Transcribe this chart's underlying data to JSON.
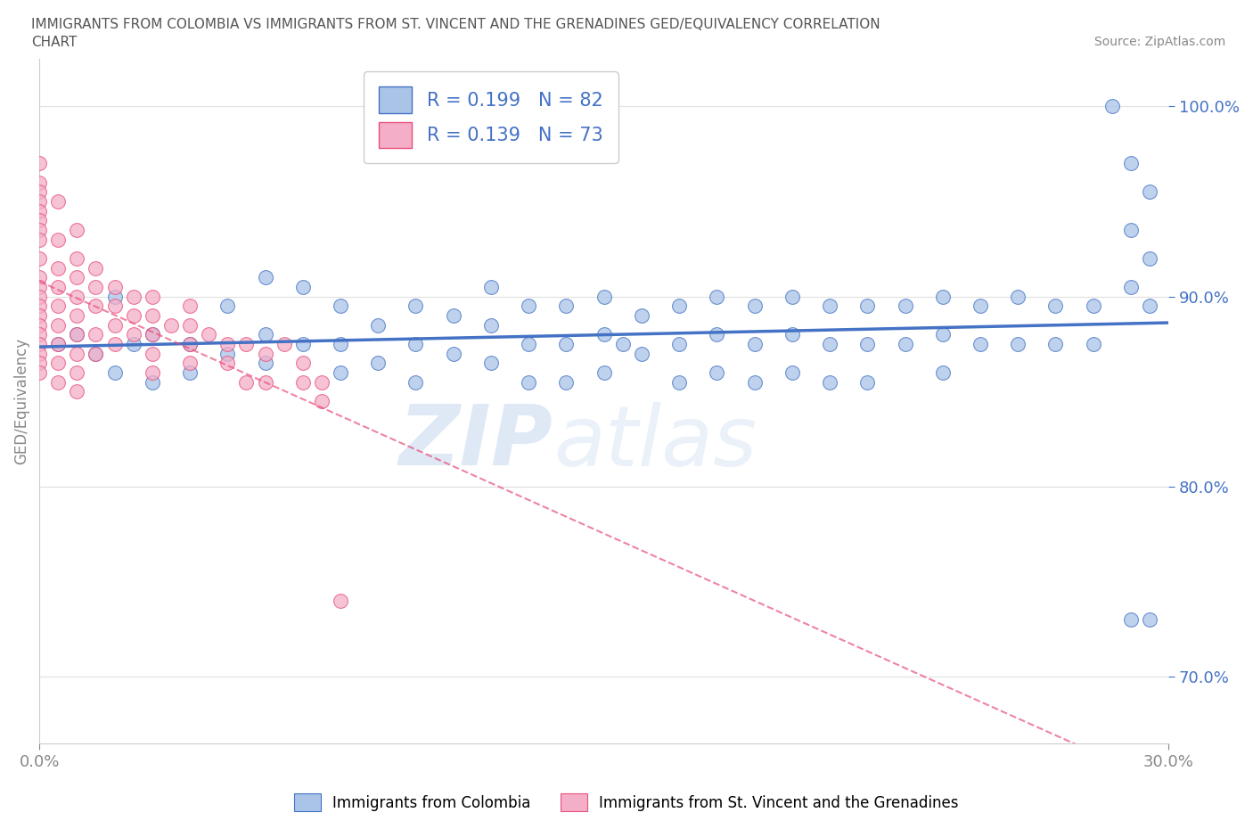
{
  "title_line1": "IMMIGRANTS FROM COLOMBIA VS IMMIGRANTS FROM ST. VINCENT AND THE GRENADINES GED/EQUIVALENCY CORRELATION",
  "title_line2": "CHART",
  "source_text": "Source: ZipAtlas.com",
  "ylabel": "GED/Equivalency",
  "xmin": 0.0,
  "xmax": 0.3,
  "ymin": 0.665,
  "ymax": 1.025,
  "yticks": [
    0.7,
    0.8,
    0.9,
    1.0
  ],
  "ytick_labels": [
    "70.0%",
    "80.0%",
    "90.0%",
    "100.0%"
  ],
  "xticks": [
    0.0,
    0.3
  ],
  "xtick_labels": [
    "0.0%",
    "30.0%"
  ],
  "color_colombia": "#aac4e8",
  "color_stvincent": "#f4aec8",
  "line_color_colombia": "#4472C4",
  "line_color_stvincent": "#e8507a",
  "R_colombia": 0.199,
  "N_colombia": 82,
  "R_stvincent": 0.139,
  "N_stvincent": 73,
  "watermark": "ZIPatlas",
  "legend_label_colombia": "Immigrants from Colombia",
  "legend_label_stvincent": "Immigrants from St. Vincent and the Grenadines",
  "colombia_x": [
    0.005,
    0.01,
    0.015,
    0.02,
    0.02,
    0.025,
    0.03,
    0.03,
    0.04,
    0.04,
    0.05,
    0.05,
    0.06,
    0.06,
    0.06,
    0.07,
    0.07,
    0.08,
    0.08,
    0.08,
    0.09,
    0.09,
    0.1,
    0.1,
    0.1,
    0.11,
    0.11,
    0.12,
    0.12,
    0.12,
    0.13,
    0.13,
    0.13,
    0.14,
    0.14,
    0.14,
    0.15,
    0.15,
    0.15,
    0.155,
    0.16,
    0.16,
    0.17,
    0.17,
    0.17,
    0.18,
    0.18,
    0.18,
    0.19,
    0.19,
    0.19,
    0.2,
    0.2,
    0.2,
    0.21,
    0.21,
    0.21,
    0.22,
    0.22,
    0.22,
    0.23,
    0.23,
    0.24,
    0.24,
    0.24,
    0.25,
    0.25,
    0.26,
    0.26,
    0.27,
    0.27,
    0.28,
    0.28,
    0.285,
    0.29,
    0.29,
    0.29,
    0.29,
    0.295,
    0.295,
    0.295,
    0.295
  ],
  "colombia_y": [
    0.875,
    0.88,
    0.87,
    0.9,
    0.86,
    0.875,
    0.88,
    0.855,
    0.875,
    0.86,
    0.895,
    0.87,
    0.91,
    0.88,
    0.865,
    0.905,
    0.875,
    0.895,
    0.875,
    0.86,
    0.885,
    0.865,
    0.895,
    0.875,
    0.855,
    0.89,
    0.87,
    0.905,
    0.885,
    0.865,
    0.895,
    0.875,
    0.855,
    0.895,
    0.875,
    0.855,
    0.9,
    0.88,
    0.86,
    0.875,
    0.89,
    0.87,
    0.895,
    0.875,
    0.855,
    0.9,
    0.88,
    0.86,
    0.895,
    0.875,
    0.855,
    0.9,
    0.88,
    0.86,
    0.895,
    0.875,
    0.855,
    0.895,
    0.875,
    0.855,
    0.895,
    0.875,
    0.9,
    0.88,
    0.86,
    0.895,
    0.875,
    0.9,
    0.875,
    0.895,
    0.875,
    0.895,
    0.875,
    1.0,
    0.97,
    0.935,
    0.905,
    0.73,
    0.955,
    0.92,
    0.895,
    0.73
  ],
  "stvincent_x": [
    0.0,
    0.0,
    0.0,
    0.0,
    0.0,
    0.0,
    0.0,
    0.0,
    0.0,
    0.0,
    0.0,
    0.0,
    0.0,
    0.0,
    0.0,
    0.0,
    0.0,
    0.0,
    0.0,
    0.0,
    0.005,
    0.005,
    0.005,
    0.005,
    0.005,
    0.005,
    0.005,
    0.005,
    0.005,
    0.01,
    0.01,
    0.01,
    0.01,
    0.01,
    0.01,
    0.01,
    0.01,
    0.01,
    0.015,
    0.015,
    0.015,
    0.015,
    0.015,
    0.02,
    0.02,
    0.02,
    0.02,
    0.025,
    0.025,
    0.025,
    0.03,
    0.03,
    0.03,
    0.03,
    0.03,
    0.035,
    0.04,
    0.04,
    0.04,
    0.04,
    0.045,
    0.05,
    0.05,
    0.055,
    0.055,
    0.06,
    0.06,
    0.065,
    0.07,
    0.07,
    0.075,
    0.075,
    0.08
  ],
  "stvincent_y": [
    0.97,
    0.96,
    0.955,
    0.95,
    0.945,
    0.94,
    0.935,
    0.93,
    0.92,
    0.91,
    0.905,
    0.9,
    0.895,
    0.89,
    0.885,
    0.88,
    0.875,
    0.87,
    0.865,
    0.86,
    0.95,
    0.93,
    0.915,
    0.905,
    0.895,
    0.885,
    0.875,
    0.865,
    0.855,
    0.935,
    0.92,
    0.91,
    0.9,
    0.89,
    0.88,
    0.87,
    0.86,
    0.85,
    0.915,
    0.905,
    0.895,
    0.88,
    0.87,
    0.905,
    0.895,
    0.885,
    0.875,
    0.9,
    0.89,
    0.88,
    0.9,
    0.89,
    0.88,
    0.87,
    0.86,
    0.885,
    0.895,
    0.885,
    0.875,
    0.865,
    0.88,
    0.875,
    0.865,
    0.875,
    0.855,
    0.87,
    0.855,
    0.875,
    0.865,
    0.855,
    0.855,
    0.845,
    0.74
  ]
}
